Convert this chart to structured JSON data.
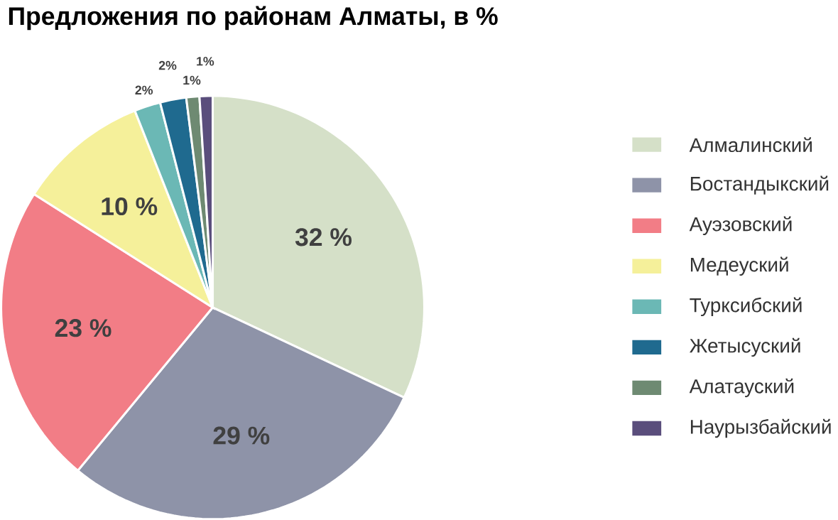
{
  "chart_data": {
    "type": "pie",
    "title": "Предложения по районам Алматы, в %",
    "categories": [
      "Алмалинский",
      "Бостандыкский",
      "Ауэзовский",
      "Медеуский",
      "Турксибский",
      "Жетысуский",
      "Алатауский",
      "Наурызбайский"
    ],
    "values": [
      32,
      29,
      23,
      10,
      2,
      2,
      1,
      1
    ],
    "colors": [
      "#d5e0c8",
      "#8e93a8",
      "#f27d86",
      "#f5f09a",
      "#6bb8b5",
      "#1f6a8f",
      "#6e8a72",
      "#5a4e7c"
    ],
    "value_labels": [
      "32 %",
      "29 %",
      "23 %",
      "10 %",
      "2%",
      "2%",
      "1%",
      "1%"
    ],
    "legend": "right"
  }
}
